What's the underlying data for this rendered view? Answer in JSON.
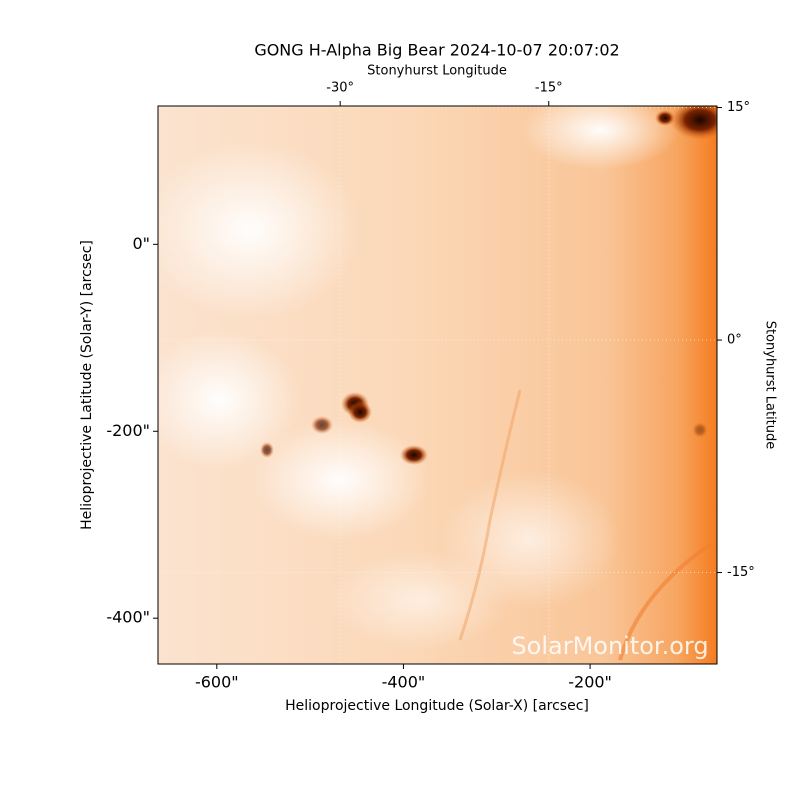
{
  "chart_data": {
    "type": "image",
    "title": "GONG H-Alpha Big Bear 2024-10-07 20:07:02",
    "xlabel": "Helioprojective Longitude (Solar-X) [arcsec]",
    "ylabel": "Helioprojective Latitude (Solar-Y) [arcsec]",
    "x2label": "Stonyhurst Longitude",
    "y2label": "Stonyhurst Latitude",
    "watermark": "SolarMonitor.org",
    "xlim": [
      -663,
      -64
    ],
    "ylim": [
      -449,
      148
    ],
    "xticks": [
      {
        "value": -600,
        "label": "-600\""
      },
      {
        "value": -400,
        "label": "-400\""
      },
      {
        "value": -200,
        "label": "-200\""
      }
    ],
    "yticks": [
      {
        "value": 0,
        "label": "0\""
      },
      {
        "value": -200,
        "label": "-200\""
      },
      {
        "value": -400,
        "label": "-400\""
      }
    ],
    "x2lim": [
      -43.1,
      -2.9
    ],
    "x2ticks": [
      {
        "value": -30,
        "label": "-30°"
      },
      {
        "value": -15,
        "label": "-15°"
      }
    ],
    "y2lim": [
      -20.9,
      15.1
    ],
    "y2ticks": [
      {
        "value": 15,
        "label": "15°"
      },
      {
        "value": 0,
        "label": "0°"
      },
      {
        "value": -15,
        "label": "-15°"
      }
    ]
  }
}
